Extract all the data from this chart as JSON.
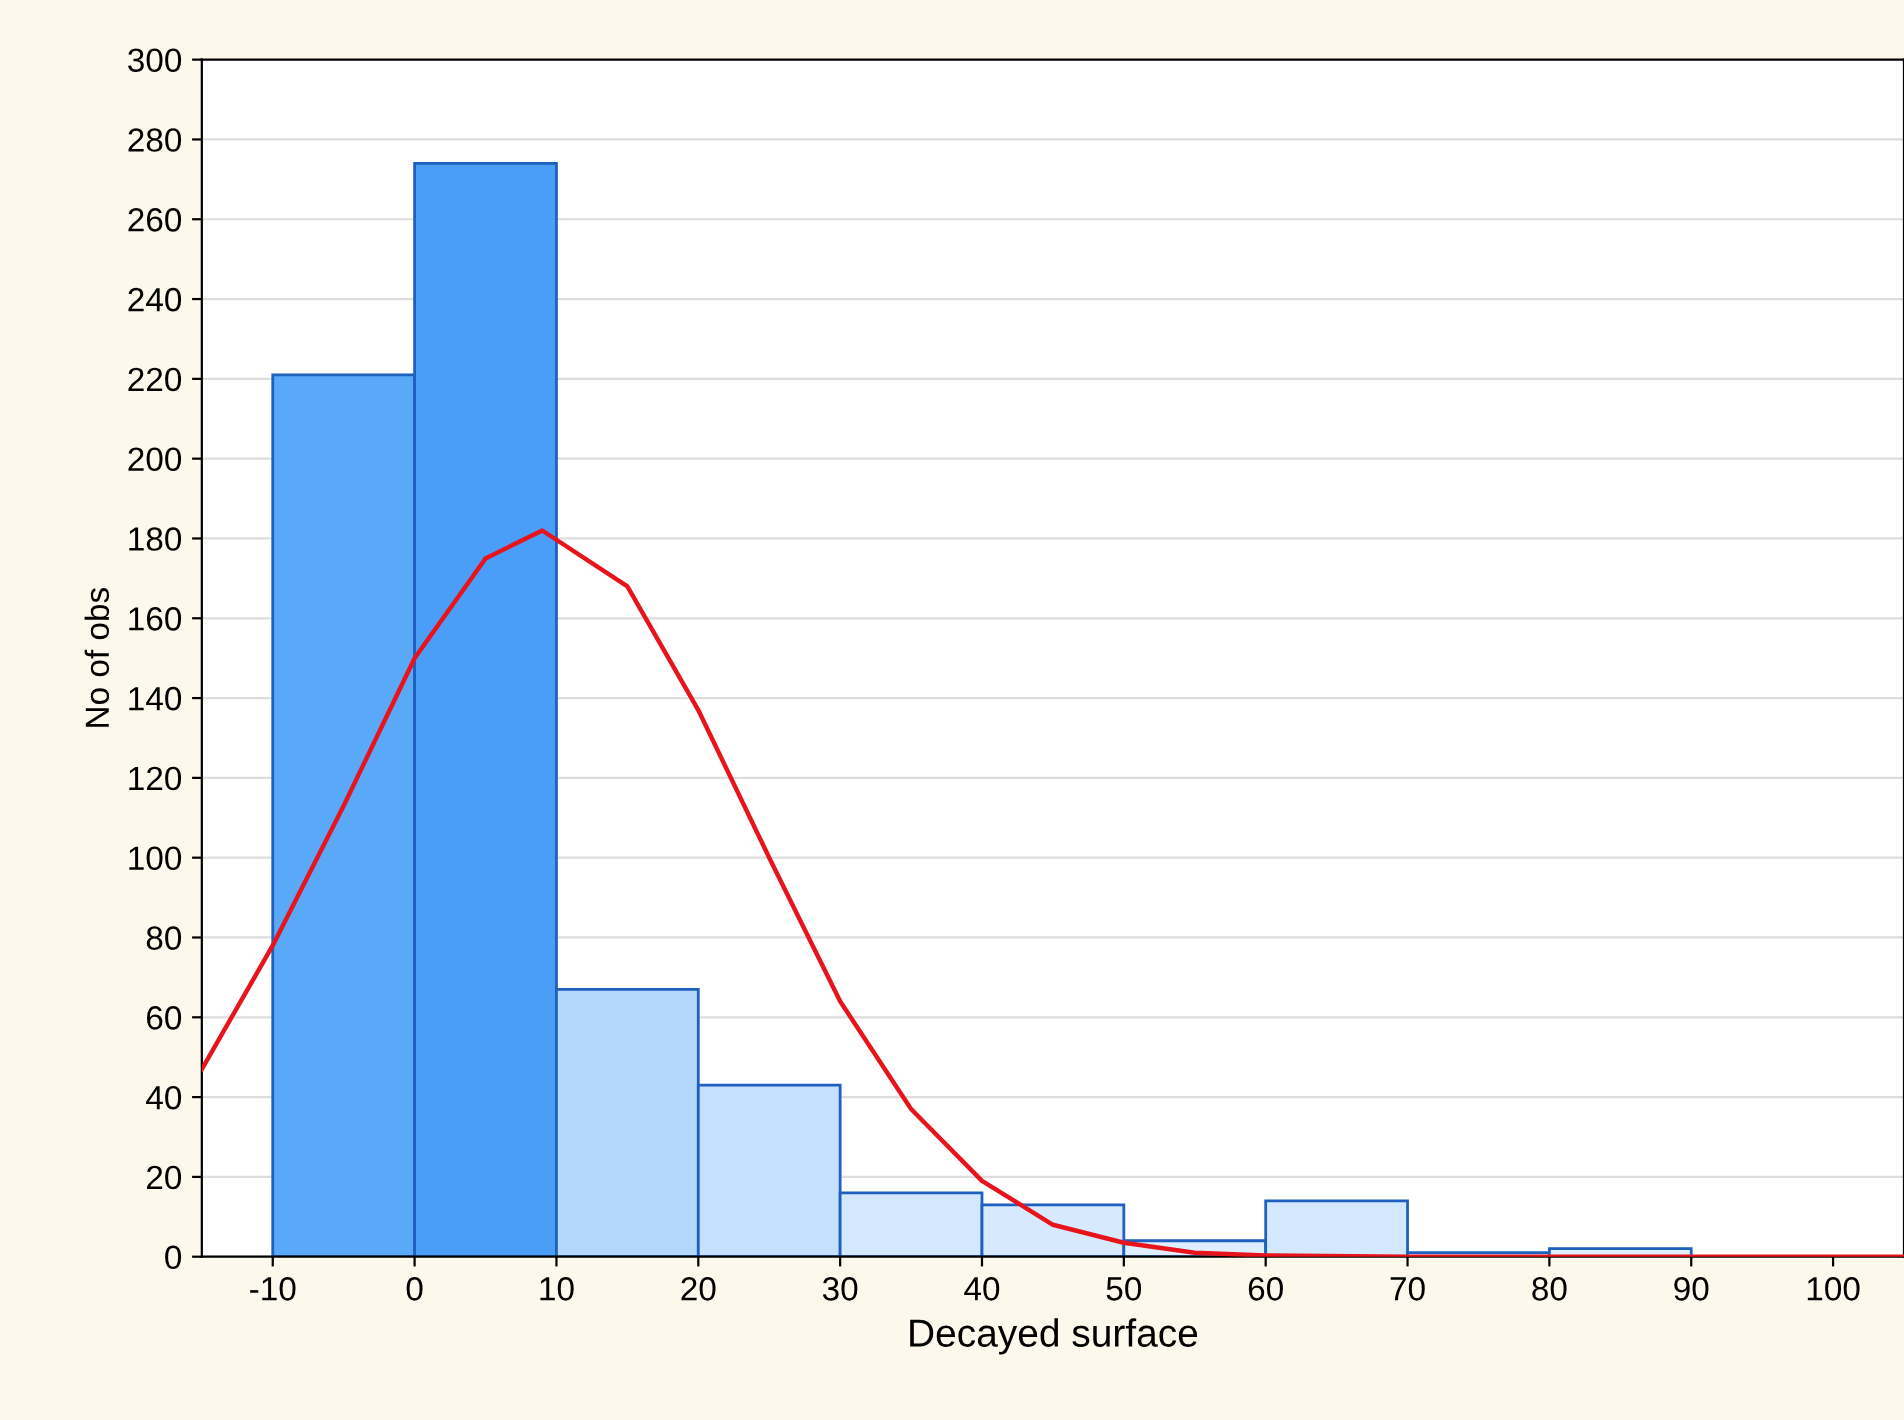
{
  "chart_data": {
    "type": "histogram",
    "xlabel": "Decayed surface",
    "ylabel": "No of obs",
    "bins": [
      -10,
      0,
      10,
      20,
      30,
      40,
      50,
      60,
      70,
      80,
      90,
      100
    ],
    "values": [
      221,
      274,
      67,
      43,
      16,
      13,
      4,
      14,
      1,
      2,
      0
    ],
    "colors": [
      "#5aa8f8",
      "#4a9ef8",
      "#b4d8fb",
      "#c4e0fc",
      "#d4e8fd",
      "#d6e9fd",
      "#deeefe",
      "#d4e8fd",
      "#e0eefe",
      "#e0eefe",
      "#e0eefe"
    ],
    "series": [
      {
        "type": "line",
        "color": "#e8141c",
        "x": [
          -15,
          -10,
          -5,
          0,
          5,
          9,
          15,
          20,
          25,
          30,
          35,
          40,
          45,
          50,
          55,
          60,
          70,
          80,
          90,
          105
        ],
        "values": [
          47,
          78,
          113,
          150,
          175,
          182,
          168,
          137,
          100,
          64,
          37,
          19,
          8,
          3.5,
          1,
          0.3,
          0,
          0,
          0,
          0
        ]
      }
    ],
    "xlim": [
      -15,
      105
    ],
    "xticks": [
      -10,
      0,
      10,
      20,
      30,
      40,
      50,
      60,
      70,
      80,
      90,
      100
    ],
    "ylim": [
      0,
      300
    ],
    "yticks": [
      0,
      20,
      40,
      60,
      80,
      100,
      120,
      140,
      160,
      180,
      200,
      220,
      240,
      260,
      280,
      300
    ],
    "grid": "y",
    "legend": false
  }
}
